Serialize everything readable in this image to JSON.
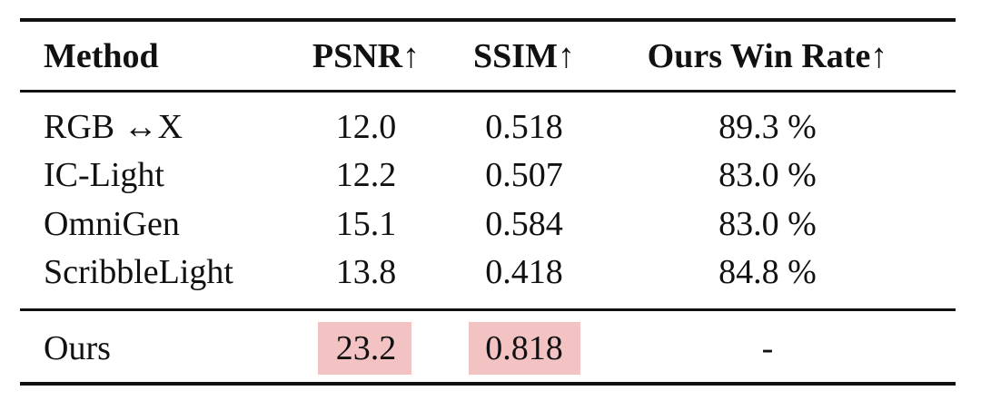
{
  "table": {
    "header": [
      "Method",
      "PSNR↑",
      "SSIM↑",
      "Ours Win Rate↑"
    ],
    "rows": [
      [
        "RGB ↔X",
        "12.0",
        "0.518",
        "89.3 %"
      ],
      [
        "IC-Light",
        "12.2",
        "0.507",
        "83.0 %"
      ],
      [
        "OmniGen",
        "15.1",
        "0.584",
        "83.0 %"
      ],
      [
        "ScribbleLight",
        "13.8",
        "0.418",
        "84.8 %"
      ],
      [
        "Ours",
        "23.2",
        "0.818",
        "-"
      ]
    ]
  }
}
